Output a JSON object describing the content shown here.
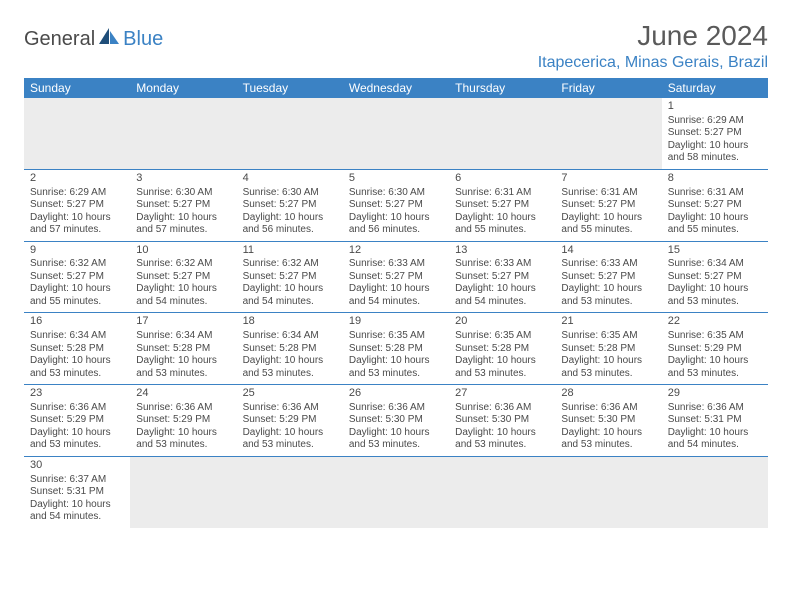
{
  "logo": {
    "text1": "General",
    "text2": "Blue"
  },
  "title": "June 2024",
  "location": "Itapecerica, Minas Gerais, Brazil",
  "header_bg": "#3b82c4",
  "header_text_color": "#ffffff",
  "accent_color": "#3b82c4",
  "text_color": "#4a4a4a",
  "blank_bg": "#ececec",
  "day_names": [
    "Sunday",
    "Monday",
    "Tuesday",
    "Wednesday",
    "Thursday",
    "Friday",
    "Saturday"
  ],
  "days": {
    "1": {
      "sunrise": "6:29 AM",
      "sunset": "5:27 PM",
      "daylight": "10 hours and 58 minutes."
    },
    "2": {
      "sunrise": "6:29 AM",
      "sunset": "5:27 PM",
      "daylight": "10 hours and 57 minutes."
    },
    "3": {
      "sunrise": "6:30 AM",
      "sunset": "5:27 PM",
      "daylight": "10 hours and 57 minutes."
    },
    "4": {
      "sunrise": "6:30 AM",
      "sunset": "5:27 PM",
      "daylight": "10 hours and 56 minutes."
    },
    "5": {
      "sunrise": "6:30 AM",
      "sunset": "5:27 PM",
      "daylight": "10 hours and 56 minutes."
    },
    "6": {
      "sunrise": "6:31 AM",
      "sunset": "5:27 PM",
      "daylight": "10 hours and 55 minutes."
    },
    "7": {
      "sunrise": "6:31 AM",
      "sunset": "5:27 PM",
      "daylight": "10 hours and 55 minutes."
    },
    "8": {
      "sunrise": "6:31 AM",
      "sunset": "5:27 PM",
      "daylight": "10 hours and 55 minutes."
    },
    "9": {
      "sunrise": "6:32 AM",
      "sunset": "5:27 PM",
      "daylight": "10 hours and 55 minutes."
    },
    "10": {
      "sunrise": "6:32 AM",
      "sunset": "5:27 PM",
      "daylight": "10 hours and 54 minutes."
    },
    "11": {
      "sunrise": "6:32 AM",
      "sunset": "5:27 PM",
      "daylight": "10 hours and 54 minutes."
    },
    "12": {
      "sunrise": "6:33 AM",
      "sunset": "5:27 PM",
      "daylight": "10 hours and 54 minutes."
    },
    "13": {
      "sunrise": "6:33 AM",
      "sunset": "5:27 PM",
      "daylight": "10 hours and 54 minutes."
    },
    "14": {
      "sunrise": "6:33 AM",
      "sunset": "5:27 PM",
      "daylight": "10 hours and 53 minutes."
    },
    "15": {
      "sunrise": "6:34 AM",
      "sunset": "5:27 PM",
      "daylight": "10 hours and 53 minutes."
    },
    "16": {
      "sunrise": "6:34 AM",
      "sunset": "5:28 PM",
      "daylight": "10 hours and 53 minutes."
    },
    "17": {
      "sunrise": "6:34 AM",
      "sunset": "5:28 PM",
      "daylight": "10 hours and 53 minutes."
    },
    "18": {
      "sunrise": "6:34 AM",
      "sunset": "5:28 PM",
      "daylight": "10 hours and 53 minutes."
    },
    "19": {
      "sunrise": "6:35 AM",
      "sunset": "5:28 PM",
      "daylight": "10 hours and 53 minutes."
    },
    "20": {
      "sunrise": "6:35 AM",
      "sunset": "5:28 PM",
      "daylight": "10 hours and 53 minutes."
    },
    "21": {
      "sunrise": "6:35 AM",
      "sunset": "5:28 PM",
      "daylight": "10 hours and 53 minutes."
    },
    "22": {
      "sunrise": "6:35 AM",
      "sunset": "5:29 PM",
      "daylight": "10 hours and 53 minutes."
    },
    "23": {
      "sunrise": "6:36 AM",
      "sunset": "5:29 PM",
      "daylight": "10 hours and 53 minutes."
    },
    "24": {
      "sunrise": "6:36 AM",
      "sunset": "5:29 PM",
      "daylight": "10 hours and 53 minutes."
    },
    "25": {
      "sunrise": "6:36 AM",
      "sunset": "5:29 PM",
      "daylight": "10 hours and 53 minutes."
    },
    "26": {
      "sunrise": "6:36 AM",
      "sunset": "5:30 PM",
      "daylight": "10 hours and 53 minutes."
    },
    "27": {
      "sunrise": "6:36 AM",
      "sunset": "5:30 PM",
      "daylight": "10 hours and 53 minutes."
    },
    "28": {
      "sunrise": "6:36 AM",
      "sunset": "5:30 PM",
      "daylight": "10 hours and 53 minutes."
    },
    "29": {
      "sunrise": "6:36 AM",
      "sunset": "5:31 PM",
      "daylight": "10 hours and 54 minutes."
    },
    "30": {
      "sunrise": "6:37 AM",
      "sunset": "5:31 PM",
      "daylight": "10 hours and 54 minutes."
    }
  },
  "labels": {
    "sunrise_prefix": "Sunrise: ",
    "sunset_prefix": "Sunset: ",
    "daylight_prefix": "Daylight: "
  },
  "weeks": [
    [
      null,
      null,
      null,
      null,
      null,
      null,
      1
    ],
    [
      2,
      3,
      4,
      5,
      6,
      7,
      8
    ],
    [
      9,
      10,
      11,
      12,
      13,
      14,
      15
    ],
    [
      16,
      17,
      18,
      19,
      20,
      21,
      22
    ],
    [
      23,
      24,
      25,
      26,
      27,
      28,
      29
    ],
    [
      30,
      null,
      null,
      null,
      null,
      null,
      null
    ]
  ]
}
